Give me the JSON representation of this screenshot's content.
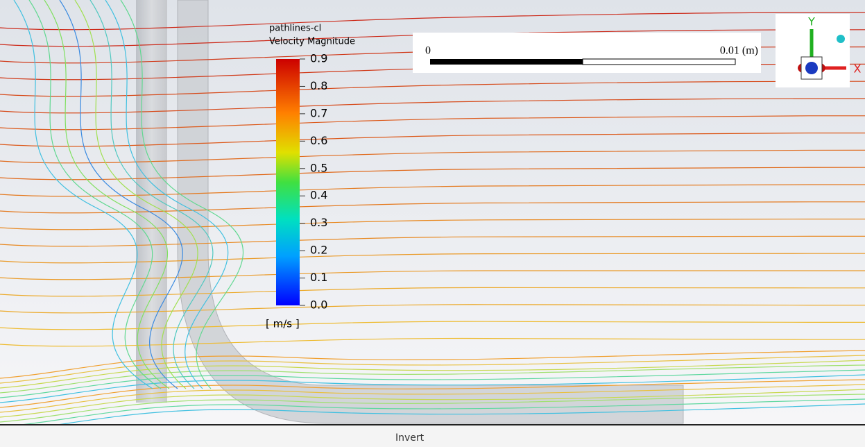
{
  "legend": {
    "title": "pathlines-cl",
    "subtitle": "Velocity Magnitude",
    "ticks": [
      "0.9",
      "0.8",
      "0.7",
      "0.6",
      "0.5",
      "0.4",
      "0.3",
      "0.2",
      "0.1",
      "0.0"
    ],
    "unit": "[ m/s ]"
  },
  "scale_bar": {
    "start": "0",
    "end": "0.01 (m)"
  },
  "triad": {
    "y": "Y",
    "x": "X"
  },
  "footer": {
    "button": "Invert"
  }
}
